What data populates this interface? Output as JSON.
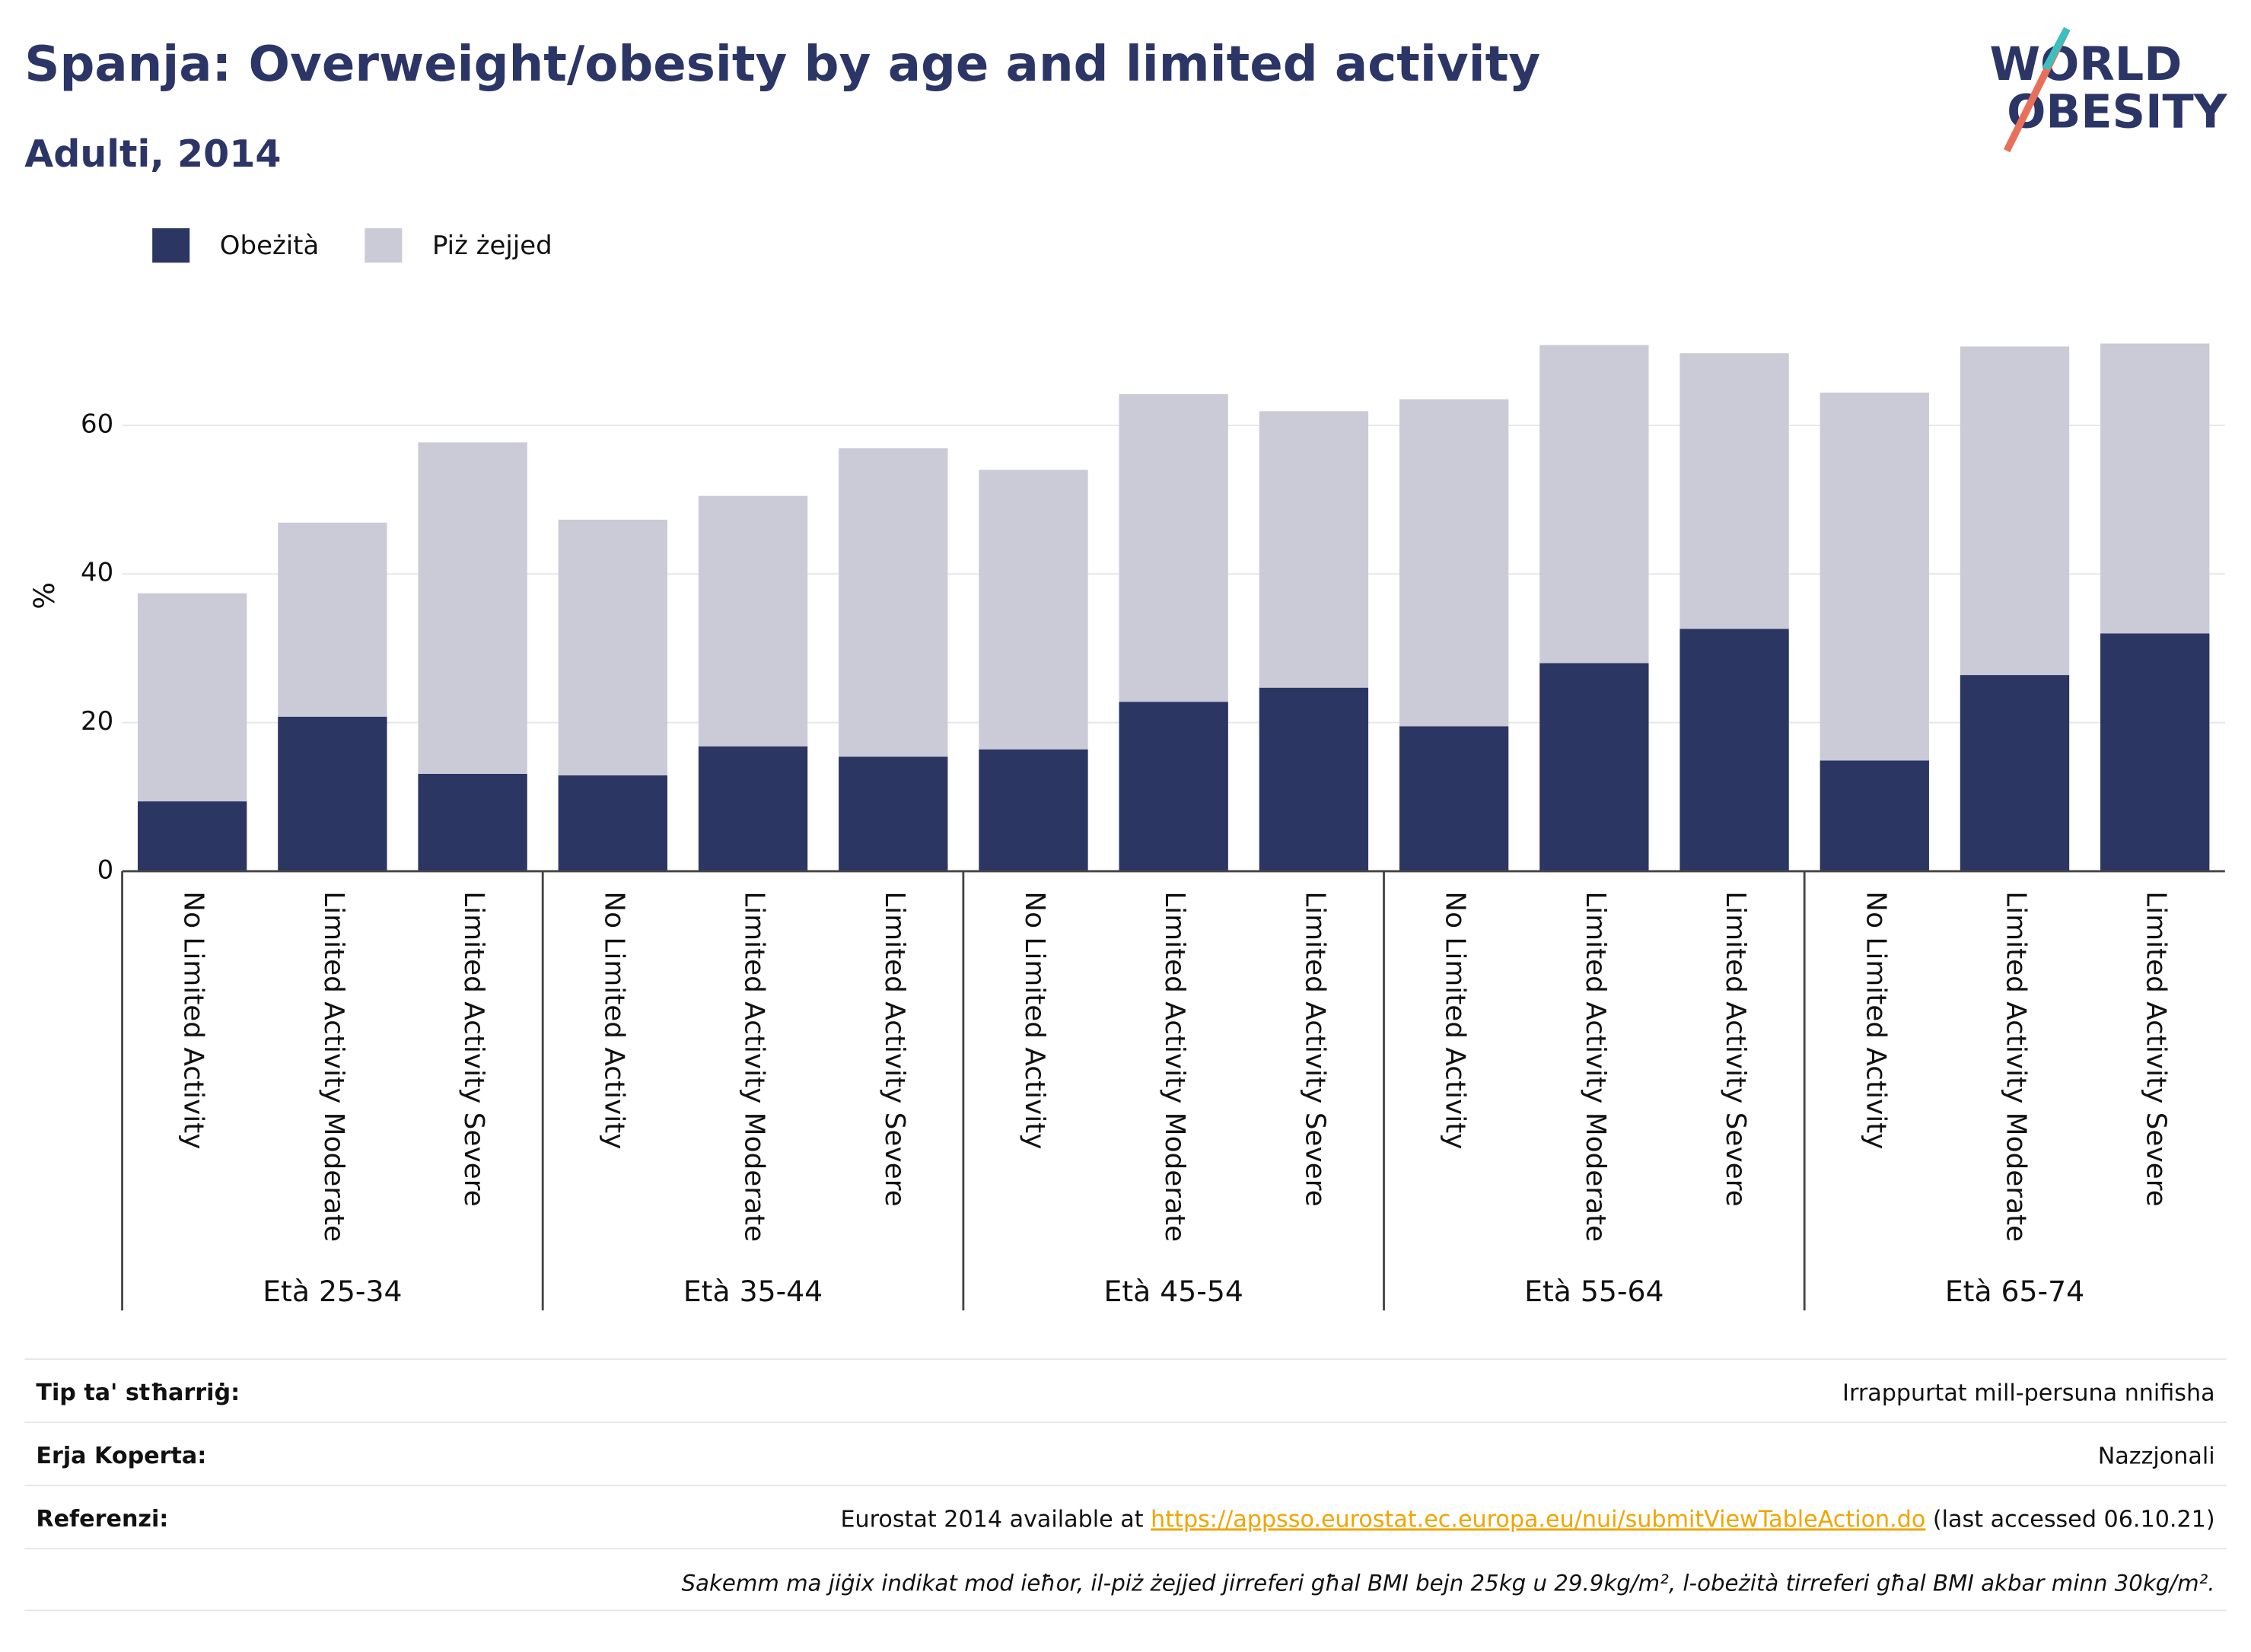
{
  "chart_data": {
    "type": "stacked_bar",
    "title": "Spanja: Overweight/obesity by age and limited activity",
    "subtitle": "Adulti, 2014",
    "logo": [
      "WORLD",
      "OBESITY"
    ],
    "y_label": "%",
    "categories": [
      "No Limited Activity",
      "Limited Activity Moderate",
      "Limited Activity Severe",
      "No Limited Activity",
      "Limited Activity Moderate",
      "Limited Activity Severe",
      "No Limited Activity",
      "Limited Activity Moderate",
      "Limited Activity Severe",
      "No Limited Activity",
      "Limited Activity Moderate",
      "Limited Activity Severe",
      "No Limited Activity",
      "Limited Activity Moderate",
      "Limited Activity Severe"
    ],
    "groups": [
      "Età 25-34",
      "Età 35-44",
      "Età 45-54",
      "Età 55-64",
      "Età 65-74"
    ],
    "series": [
      {
        "name": "Obeżità",
        "color": "#2b3663",
        "values": [
          9.4,
          20.8,
          13.1,
          12.9,
          16.8,
          15.4,
          16.4,
          22.8,
          24.7,
          19.5,
          28.0,
          32.6,
          14.9,
          26.4,
          32.0
        ]
      },
      {
        "name": "Piż żejjed",
        "color": "#cacbd7",
        "values": [
          28.0,
          26.1,
          44.6,
          34.4,
          33.7,
          41.5,
          37.6,
          41.4,
          37.2,
          44.0,
          42.8,
          37.1,
          49.5,
          44.2,
          39.0
        ]
      }
    ],
    "ylim": [
      0,
      73
    ],
    "yticks": [
      0,
      20,
      40,
      60
    ],
    "grid": true,
    "legend": "top-left"
  },
  "footer": {
    "rows": [
      {
        "label": "Tip ta' stħarriġ:",
        "value": [
          "Irrappurtat mill-persuna nnifisha"
        ]
      },
      {
        "label": "Erja Koperta:",
        "value": [
          "Nazzjonali"
        ]
      },
      {
        "label": "Referenzi:",
        "value": [
          "Eurostat 2014 available at ",
          "https://appsso.eurostat.ec.europa.eu/nui/submitViewTableAction.do",
          " (last accessed 06.10.21)"
        ]
      }
    ],
    "note": "Sakemm ma jiġix indikat mod ieħor, il-piż żejjed jirreferi għal BMI bejn 25kg u 29.9kg/m², l-obeżità tirreferi għal BMI akbar minn 30kg/m²."
  }
}
